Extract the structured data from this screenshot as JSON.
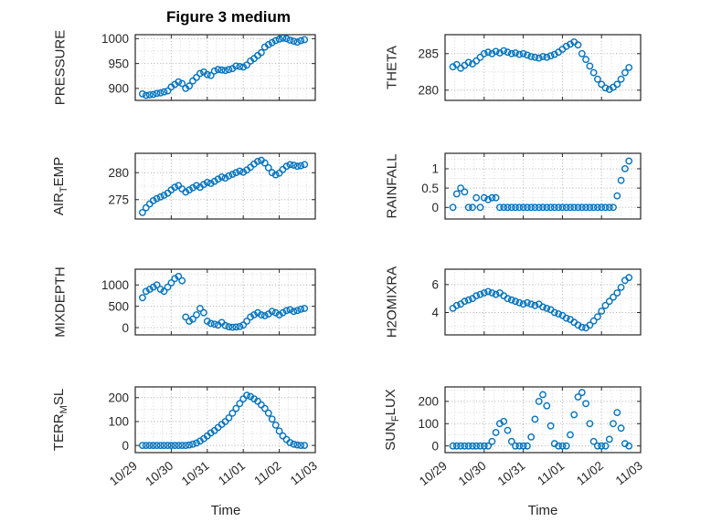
{
  "chart_data": {
    "type": "scatter",
    "title": "Figure 3 medium",
    "xlabel": "Time",
    "xlim": [
      0,
      5
    ],
    "x_tick_labels": [
      "10/29",
      "10/30",
      "10/31",
      "11/01",
      "11/02",
      "11/03"
    ],
    "x_days": [
      0.2,
      0.3,
      0.4,
      0.5,
      0.6,
      0.7,
      0.8,
      0.9,
      1.0,
      1.1,
      1.2,
      1.3,
      1.4,
      1.5,
      1.6,
      1.7,
      1.8,
      1.9,
      2.0,
      2.1,
      2.2,
      2.3,
      2.4,
      2.5,
      2.6,
      2.7,
      2.8,
      2.9,
      3.0,
      3.1,
      3.2,
      3.3,
      3.4,
      3.5,
      3.6,
      3.7,
      3.8,
      3.9,
      4.0,
      4.1,
      4.2,
      4.3,
      4.4,
      4.5,
      4.6,
      4.7
    ],
    "marker": "o",
    "grid": "on",
    "subplots": [
      {
        "name": "PRESSURE",
        "ylabel_parts": [
          {
            "text": "PRESSURE",
            "sub": false
          }
        ],
        "yticks": [
          900,
          950,
          1000
        ],
        "ylim": [
          876,
          1008
        ],
        "values": [
          889,
          886,
          887,
          888,
          890,
          891,
          893,
          895,
          903,
          908,
          913,
          910,
          900,
          905,
          915,
          922,
          930,
          933,
          928,
          926,
          935,
          938,
          937,
          936,
          938,
          940,
          945,
          944,
          943,
          947,
          955,
          960,
          966,
          972,
          983,
          988,
          992,
          996,
          999,
          1001,
          1000,
          997,
          995,
          993,
          996,
          998
        ]
      },
      {
        "name": "THETA",
        "ylabel_parts": [
          {
            "text": "THETA",
            "sub": false
          }
        ],
        "yticks": [
          280,
          285
        ],
        "ylim": [
          278.6,
          287.6
        ],
        "values": [
          283.2,
          283.5,
          283.0,
          283.4,
          283.8,
          283.6,
          284.0,
          284.5,
          285.0,
          285.2,
          285.0,
          285.3,
          285.1,
          285.4,
          285.2,
          285.0,
          285.1,
          284.9,
          285.0,
          284.8,
          284.6,
          284.5,
          284.4,
          284.6,
          284.5,
          284.7,
          284.9,
          285.2,
          285.6,
          286.0,
          286.3,
          286.6,
          286.2,
          285.0,
          284.2,
          283.3,
          282.4,
          281.5,
          280.8,
          280.3,
          280.1,
          280.4,
          280.8,
          281.5,
          282.4,
          283.1
        ]
      },
      {
        "name": "AIR_TEMP",
        "ylabel_parts": [
          {
            "text": "AIR",
            "sub": false
          },
          {
            "text": "T",
            "sub": true
          },
          {
            "text": "EMP",
            "sub": false
          }
        ],
        "yticks": [
          275,
          280
        ],
        "ylim": [
          271.4,
          283.6
        ],
        "values": [
          272.6,
          273.5,
          274.2,
          274.8,
          275.2,
          275.5,
          275.8,
          276.2,
          276.8,
          277.3,
          277.6,
          277.0,
          276.4,
          276.8,
          277.2,
          277.6,
          277.3,
          277.8,
          278.2,
          278.0,
          278.4,
          278.8,
          279.2,
          279.0,
          279.4,
          279.7,
          280.0,
          280.3,
          280.1,
          280.5,
          281.0,
          281.6,
          282.1,
          282.3,
          281.8,
          280.9,
          280.0,
          279.6,
          279.9,
          280.6,
          281.2,
          281.5,
          281.4,
          281.2,
          281.3,
          281.5
        ]
      },
      {
        "name": "RAINFALL",
        "ylabel_parts": [
          {
            "text": "RAINFALL",
            "sub": false
          }
        ],
        "yticks": [
          0,
          0.5,
          1
        ],
        "ylim": [
          -0.3,
          1.4
        ],
        "values": [
          0,
          0.35,
          0.5,
          0.4,
          0,
          0,
          0.25,
          0,
          0.25,
          0.2,
          0.25,
          0.25,
          0,
          0,
          0,
          0,
          0,
          0,
          0,
          0,
          0,
          0,
          0,
          0,
          0,
          0,
          0,
          0,
          0,
          0,
          0,
          0,
          0,
          0,
          0,
          0,
          0,
          0,
          0,
          0,
          0,
          0,
          0.3,
          0.7,
          1.0,
          1.2
        ]
      },
      {
        "name": "MIXDEPTH",
        "ylabel_parts": [
          {
            "text": "MIXDEPTH",
            "sub": false
          }
        ],
        "yticks": [
          0,
          500,
          1000
        ],
        "ylim": [
          -170,
          1370
        ],
        "values": [
          700,
          850,
          900,
          950,
          1000,
          900,
          850,
          950,
          1050,
          1150,
          1200,
          1100,
          250,
          150,
          200,
          300,
          450,
          350,
          150,
          100,
          80,
          60,
          120,
          50,
          20,
          10,
          15,
          25,
          60,
          150,
          250,
          300,
          350,
          300,
          280,
          320,
          380,
          350,
          300,
          350,
          400,
          420,
          380,
          400,
          430,
          450
        ]
      },
      {
        "name": "H2OMIXRA",
        "ylabel_parts": [
          {
            "text": "H2OMIXRA",
            "sub": false
          }
        ],
        "yticks": [
          4,
          6
        ],
        "ylim": [
          2.4,
          7.1
        ],
        "values": [
          4.3,
          4.5,
          4.6,
          4.8,
          4.9,
          5.0,
          5.2,
          5.3,
          5.4,
          5.5,
          5.4,
          5.3,
          5.4,
          5.2,
          5.0,
          4.9,
          4.8,
          4.7,
          4.6,
          4.7,
          4.6,
          4.5,
          4.6,
          4.4,
          4.3,
          4.2,
          4.0,
          3.9,
          3.8,
          3.6,
          3.5,
          3.3,
          3.1,
          2.95,
          2.9,
          3.1,
          3.4,
          3.7,
          4.1,
          4.5,
          4.8,
          5.1,
          5.4,
          5.8,
          6.3,
          6.5
        ]
      },
      {
        "name": "TERR_MSL",
        "ylabel_parts": [
          {
            "text": "TERR",
            "sub": false
          },
          {
            "text": "M",
            "sub": true
          },
          {
            "text": "SL",
            "sub": false
          }
        ],
        "yticks": [
          0,
          100,
          200
        ],
        "ylim": [
          -30,
          245
        ],
        "values": [
          0,
          0,
          0,
          0,
          0,
          0,
          0,
          0,
          0,
          0,
          0,
          0,
          0,
          2,
          5,
          10,
          18,
          28,
          40,
          52,
          62,
          75,
          88,
          100,
          115,
          135,
          155,
          175,
          195,
          210,
          205,
          195,
          185,
          170,
          155,
          135,
          110,
          85,
          60,
          40,
          25,
          12,
          5,
          2,
          0,
          0
        ]
      },
      {
        "name": "SUN_FLUX",
        "ylabel_parts": [
          {
            "text": "SUN",
            "sub": false
          },
          {
            "text": "F",
            "sub": true
          },
          {
            "text": "LUX",
            "sub": false
          }
        ],
        "yticks": [
          0,
          100,
          200
        ],
        "ylim": [
          -30,
          265
        ],
        "values": [
          0,
          0,
          0,
          0,
          0,
          0,
          0,
          0,
          0,
          0,
          20,
          60,
          100,
          110,
          70,
          20,
          0,
          0,
          0,
          0,
          40,
          120,
          200,
          230,
          180,
          90,
          10,
          0,
          0,
          0,
          50,
          140,
          220,
          240,
          190,
          100,
          20,
          0,
          0,
          0,
          30,
          100,
          150,
          80,
          10,
          0
        ]
      }
    ]
  },
  "style": {
    "marker_color": "#0072BD",
    "axis_text_color": "#262626",
    "border_color": "#262626",
    "grid_major_color": "#aeaeae",
    "grid_minor_color": "#d8d8d8"
  }
}
